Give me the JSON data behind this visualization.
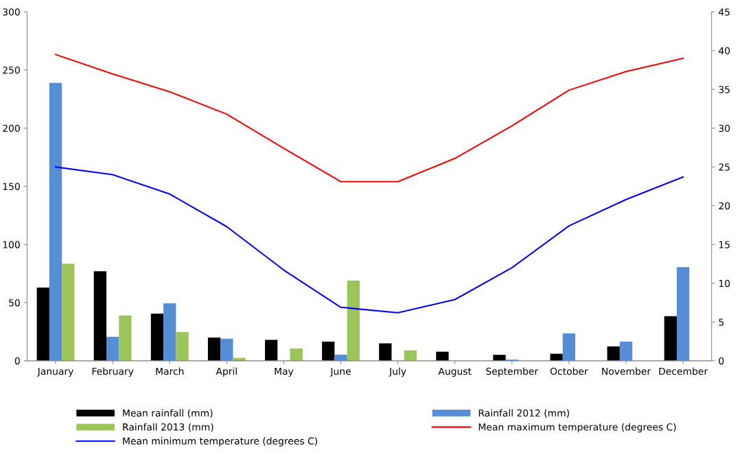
{
  "chart_data": {
    "type": "bar",
    "categories": [
      "January",
      "February",
      "March",
      "April",
      "May",
      "June",
      "July",
      "August",
      "September",
      "October",
      "November",
      "December"
    ],
    "series": [
      {
        "name": "Mean rainfall (mm)",
        "color": "#000000",
        "values": [
          63,
          77,
          40.5,
          20,
          18,
          16.5,
          15,
          7.8,
          5.2,
          6,
          12.4,
          38.4
        ]
      },
      {
        "name": "Rainfall 2012 (mm)",
        "color": "#558ed5",
        "values": [
          239,
          20.6,
          49.4,
          19,
          0,
          5.3,
          0,
          0,
          1.1,
          23.6,
          16.5,
          80.6
        ]
      },
      {
        "name": "Rainfall 2013 (mm)",
        "color": "#9bc55a",
        "values": [
          83.5,
          39,
          24.7,
          2.5,
          10.6,
          69,
          9,
          0,
          null,
          0,
          0,
          0
        ]
      },
      {
        "name": "Mean maximum temperature (degrees C)",
        "type": "line",
        "axis": "y2",
        "color": "#ff0000",
        "values": [
          39.5,
          37,
          34.7,
          31.8,
          27.4,
          23.1,
          23.1,
          26.1,
          30.3,
          34.9,
          37.3,
          39.0
        ]
      },
      {
        "name": "Mean minimum temperature (degrees C)",
        "type": "line",
        "axis": "y2",
        "color": "#0000ff",
        "values": [
          25.0,
          24.0,
          21.5,
          17.3,
          11.7,
          6.9,
          6.2,
          7.9,
          12.0,
          17.4,
          20.8,
          23.7
        ]
      }
    ],
    "ylim": [
      0,
      300
    ],
    "yticks": [
      0,
      50,
      100,
      150,
      200,
      250,
      300
    ],
    "y2lim": [
      0,
      45
    ],
    "y2ticks": [
      0,
      5,
      10,
      15,
      20,
      25,
      30,
      35,
      40,
      45
    ],
    "grid": false,
    "legend": "bottom",
    "marker": "none",
    "line_style": "solid"
  }
}
